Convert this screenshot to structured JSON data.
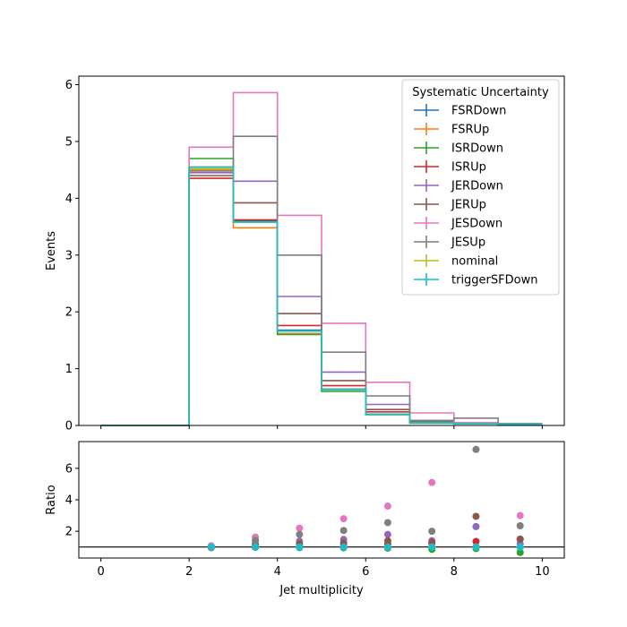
{
  "chart_data": [
    {
      "type": "step-histogram",
      "ylabel": "Events",
      "ylim": [
        0,
        6.15
      ],
      "xlim": [
        -0.5,
        10.5
      ],
      "yticks": [
        "0",
        "1",
        "2",
        "3",
        "4",
        "5",
        "6"
      ],
      "bin_edges": [
        0,
        1,
        2,
        3,
        4,
        5,
        6,
        7,
        8,
        9,
        10
      ],
      "legend": {
        "title": "Systematic Uncertainty",
        "placement": "top-right"
      },
      "series": [
        {
          "name": "FSRDown",
          "color": "#1f77b4",
          "values": [
            0,
            0,
            4.55,
            3.6,
            1.68,
            0.64,
            0.2,
            0.05,
            0.03,
            0.02
          ]
        },
        {
          "name": "FSRUp",
          "color": "#ff7f0e",
          "values": [
            0,
            0,
            4.5,
            3.48,
            1.62,
            0.63,
            0.2,
            0.05,
            0.03,
            0.02
          ]
        },
        {
          "name": "ISRDown",
          "color": "#2ca02c",
          "values": [
            0,
            0,
            4.7,
            3.58,
            1.6,
            0.6,
            0.19,
            0.04,
            0.03,
            0.01
          ]
        },
        {
          "name": "ISRUp",
          "color": "#d62728",
          "values": [
            0,
            0,
            4.35,
            3.62,
            1.76,
            0.7,
            0.24,
            0.06,
            0.04,
            0.03
          ]
        },
        {
          "name": "JERDown",
          "color": "#9467bd",
          "values": [
            0,
            0,
            4.45,
            4.3,
            2.27,
            0.94,
            0.37,
            0.07,
            0.03,
            0.02
          ]
        },
        {
          "name": "JERUp",
          "color": "#8c564b",
          "values": [
            0,
            0,
            4.4,
            3.92,
            1.97,
            0.79,
            0.28,
            0.06,
            0.05,
            0.03
          ]
        },
        {
          "name": "JESDown",
          "color": "#e377c2",
          "values": [
            0,
            0,
            4.9,
            5.86,
            3.7,
            1.8,
            0.76,
            0.22,
            0.05,
            0.03
          ]
        },
        {
          "name": "JESUp",
          "color": "#7f7f7f",
          "values": [
            0,
            0,
            4.48,
            5.09,
            3.0,
            1.29,
            0.52,
            0.09,
            0.13,
            0.03
          ]
        },
        {
          "name": "nominal",
          "color": "#bcbd22",
          "values": [
            0,
            0,
            4.52,
            3.58,
            1.66,
            0.63,
            0.2,
            0.05,
            0.03,
            0.02
          ]
        },
        {
          "name": "triggerSFDown",
          "color": "#17becf",
          "values": [
            0,
            0,
            4.55,
            3.58,
            1.66,
            0.63,
            0.2,
            0.05,
            0.03,
            0.02
          ]
        }
      ]
    },
    {
      "type": "scatter",
      "xlabel": "Jet multiplicity",
      "ylabel": "Ratio",
      "xlim": [
        -0.5,
        10.5
      ],
      "ylim": [
        0.3,
        7.7
      ],
      "xticks": [
        "0",
        "2",
        "4",
        "6",
        "8",
        "10"
      ],
      "yticks": [
        "2",
        "4",
        "6"
      ],
      "reference_line": 1.0,
      "x": [
        2.5,
        3.5,
        4.5,
        5.5,
        6.5,
        7.5,
        8.5,
        9.5
      ],
      "series": [
        {
          "name": "FSRDown",
          "color": "#1f77b4",
          "values": [
            1.0,
            1.0,
            1.0,
            1.0,
            1.0,
            1.0,
            1.0,
            1.0
          ]
        },
        {
          "name": "FSRUp",
          "color": "#ff7f0e",
          "values": [
            1.0,
            0.97,
            0.98,
            1.0,
            1.0,
            1.0,
            1.0,
            1.0
          ]
        },
        {
          "name": "ISRDown",
          "color": "#2ca02c",
          "values": [
            1.04,
            1.0,
            0.96,
            0.95,
            0.93,
            0.85,
            0.9,
            0.65
          ]
        },
        {
          "name": "ISRUp",
          "color": "#d62728",
          "values": [
            0.96,
            1.01,
            1.06,
            1.1,
            1.2,
            1.25,
            1.35,
            1.5
          ]
        },
        {
          "name": "JERDown",
          "color": "#9467bd",
          "values": [
            0.98,
            1.2,
            1.37,
            1.48,
            1.8,
            1.4,
            2.3,
            1.2
          ]
        },
        {
          "name": "JERUp",
          "color": "#8c564b",
          "values": [
            0.97,
            1.1,
            1.19,
            1.25,
            1.4,
            1.3,
            2.95,
            1.5
          ]
        },
        {
          "name": "JESDown",
          "color": "#e377c2",
          "values": [
            1.08,
            1.63,
            2.2,
            2.8,
            3.6,
            5.1,
            1.0,
            3.0
          ]
        },
        {
          "name": "JESUp",
          "color": "#7f7f7f",
          "values": [
            0.99,
            1.42,
            1.8,
            2.05,
            2.55,
            2.0,
            7.2,
            2.35
          ]
        },
        {
          "name": "nominal",
          "color": "#bcbd22",
          "values": [
            1.0,
            1.0,
            1.0,
            1.0,
            1.0,
            1.0,
            1.0,
            1.0
          ]
        },
        {
          "name": "triggerSFDown",
          "color": "#17becf",
          "values": [
            1.01,
            1.0,
            1.0,
            1.0,
            1.0,
            1.0,
            1.0,
            1.0
          ]
        }
      ]
    }
  ]
}
